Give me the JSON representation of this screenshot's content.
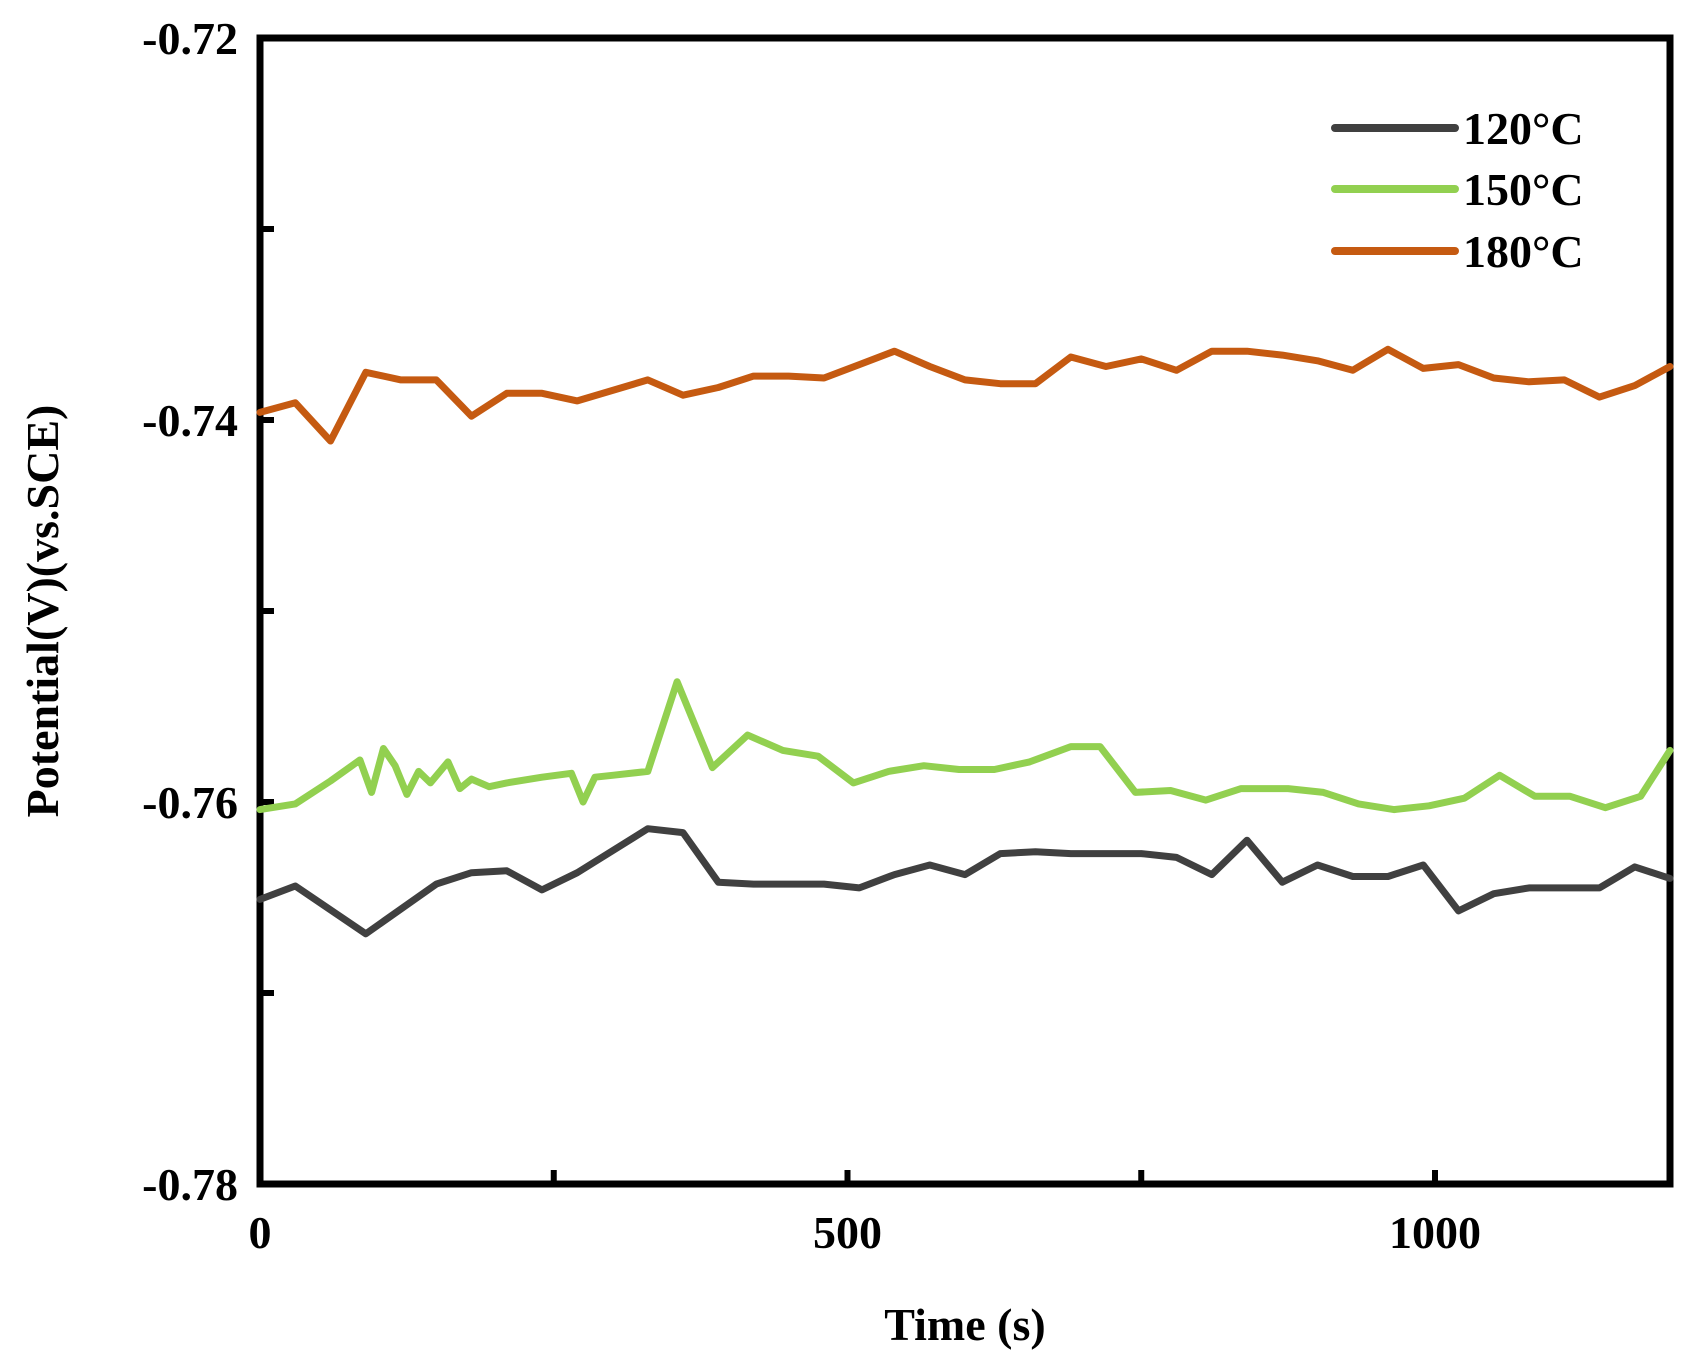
{
  "chart_data": {
    "type": "line",
    "title": "",
    "xlabel": "Time (s)",
    "ylabel": "Potential(V)(vs.SCE)",
    "xlim": [
      0,
      1200
    ],
    "ylim": [
      -0.78,
      -0.72
    ],
    "x_ticks": [
      0,
      250,
      500,
      750,
      1000
    ],
    "x_tick_labels": [
      "0",
      "",
      "500",
      "",
      "1000"
    ],
    "y_ticks": [
      -0.72,
      -0.73,
      -0.74,
      -0.75,
      -0.76,
      -0.77,
      -0.78
    ],
    "y_tick_labels": [
      "-0.72",
      "",
      "-0.74",
      "",
      "-0.76",
      "",
      "-0.78"
    ],
    "grid": false,
    "legend_position": "top-right",
    "series": [
      {
        "name": "120°C",
        "color": "#404040",
        "x": [
          0,
          30,
          90,
          150,
          180,
          210,
          240,
          270,
          330,
          360,
          390,
          420,
          450,
          480,
          510,
          540,
          570,
          600,
          630,
          660,
          690,
          720,
          750,
          780,
          810,
          840,
          870,
          900,
          930,
          960,
          990,
          1020,
          1050,
          1080,
          1110,
          1140,
          1170,
          1200
        ],
        "y": [
          -0.7651,
          -0.7644,
          -0.7669,
          -0.7643,
          -0.7637,
          -0.7636,
          -0.7646,
          -0.7637,
          -0.7614,
          -0.7616,
          -0.7642,
          -0.7643,
          -0.7643,
          -0.7643,
          -0.7645,
          -0.7638,
          -0.7633,
          -0.7638,
          -0.7627,
          -0.7626,
          -0.7627,
          -0.7627,
          -0.7627,
          -0.7629,
          -0.7638,
          -0.762,
          -0.7642,
          -0.7633,
          -0.7639,
          -0.7639,
          -0.7633,
          -0.7657,
          -0.7648,
          -0.7645,
          -0.7645,
          -0.7645,
          -0.7634,
          -0.764
        ]
      },
      {
        "name": "150°C",
        "color": "#92d050",
        "x": [
          0,
          30,
          60,
          85,
          95,
          105,
          115,
          125,
          135,
          145,
          160,
          170,
          180,
          195,
          210,
          240,
          265,
          275,
          285,
          300,
          330,
          355,
          385,
          415,
          445,
          475,
          505,
          535,
          565,
          595,
          625,
          655,
          690,
          715,
          745,
          775,
          805,
          835,
          875,
          905,
          935,
          965,
          995,
          1025,
          1055,
          1085,
          1115,
          1145,
          1175,
          1200
        ],
        "y": [
          -0.7604,
          -0.7601,
          -0.7589,
          -0.7578,
          -0.7595,
          -0.7572,
          -0.7581,
          -0.7596,
          -0.7584,
          -0.759,
          -0.7579,
          -0.7593,
          -0.7588,
          -0.7592,
          -0.759,
          -0.7587,
          -0.7585,
          -0.76,
          -0.7587,
          -0.7586,
          -0.7584,
          -0.7537,
          -0.7582,
          -0.7565,
          -0.7573,
          -0.7576,
          -0.759,
          -0.7584,
          -0.7581,
          -0.7583,
          -0.7583,
          -0.7579,
          -0.7571,
          -0.7571,
          -0.7595,
          -0.7594,
          -0.7599,
          -0.7593,
          -0.7593,
          -0.7595,
          -0.7601,
          -0.7604,
          -0.7602,
          -0.7598,
          -0.7586,
          -0.7597,
          -0.7597,
          -0.7603,
          -0.7597,
          -0.7573
        ]
      },
      {
        "name": "180°C",
        "color": "#c55a11",
        "x": [
          0,
          30,
          60,
          90,
          120,
          150,
          180,
          210,
          240,
          270,
          330,
          360,
          390,
          420,
          450,
          480,
          510,
          540,
          570,
          600,
          630,
          660,
          690,
          720,
          750,
          780,
          810,
          840,
          870,
          900,
          930,
          960,
          990,
          1020,
          1050,
          1080,
          1110,
          1140,
          1170,
          1200
        ],
        "y": [
          -0.7396,
          -0.7391,
          -0.7411,
          -0.7375,
          -0.7379,
          -0.7379,
          -0.7398,
          -0.7386,
          -0.7386,
          -0.739,
          -0.7379,
          -0.7387,
          -0.7383,
          -0.7377,
          -0.7377,
          -0.7378,
          -0.7371,
          -0.7364,
          -0.7372,
          -0.7379,
          -0.7381,
          -0.7381,
          -0.7367,
          -0.7372,
          -0.7368,
          -0.7374,
          -0.7364,
          -0.7364,
          -0.7366,
          -0.7369,
          -0.7374,
          -0.7363,
          -0.7373,
          -0.7371,
          -0.7378,
          -0.738,
          -0.7379,
          -0.7388,
          -0.7382,
          -0.7372
        ]
      }
    ]
  }
}
